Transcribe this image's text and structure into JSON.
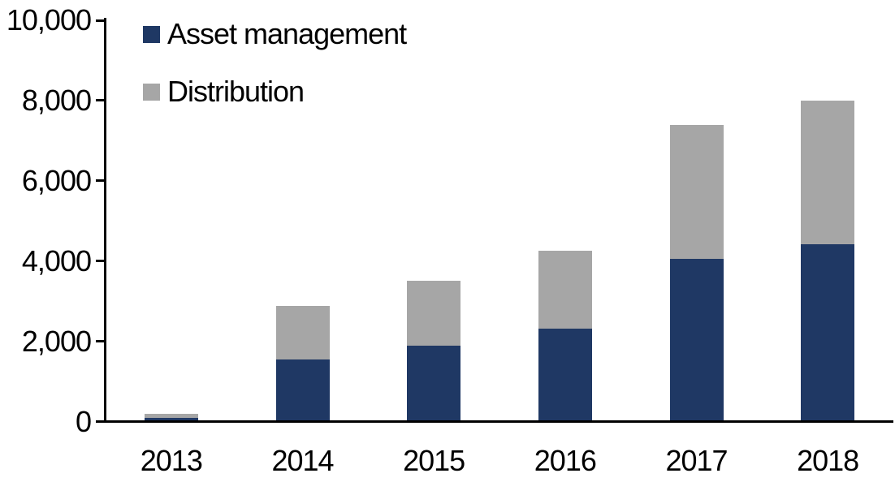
{
  "chart_data": {
    "type": "bar",
    "stacked": true,
    "title": "",
    "xlabel": "",
    "ylabel": "",
    "categories": [
      "2013",
      "2014",
      "2015",
      "2016",
      "2017",
      "2018"
    ],
    "series": [
      {
        "name": "Asset management",
        "color": "#1F3864",
        "values": [
          100,
          1550,
          1900,
          2325,
          4050,
          4425
        ]
      },
      {
        "name": "Distribution",
        "color": "#A6A6A6",
        "values": [
          100,
          1325,
          1600,
          1925,
          3350,
          3575
        ]
      }
    ],
    "totals": [
      200,
      2875,
      3500,
      4250,
      7400,
      8000
    ],
    "ylim": [
      0,
      10000
    ],
    "y_ticks": [
      0,
      2000,
      4000,
      6000,
      8000,
      10000
    ],
    "y_tick_labels": [
      "0",
      "2,000",
      "4,000",
      "6,000",
      "8,000",
      "10,000"
    ],
    "grid": false,
    "legend_position": "top-left",
    "axis_color": "#000000",
    "text_color": "#000000"
  }
}
